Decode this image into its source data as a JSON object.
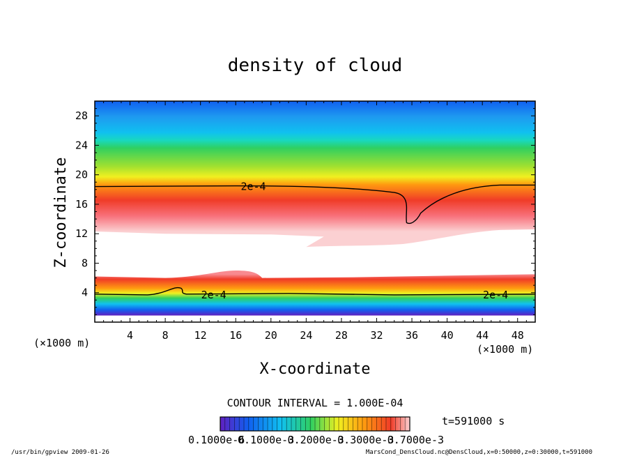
{
  "chart_data": {
    "type": "heatmap",
    "title": "density of cloud",
    "xlabel": "X-coordinate",
    "ylabel": "Z-coordinate",
    "x_unit_label": "(×1000 m)",
    "y_unit_label": "(×1000 m)",
    "xlim": [
      0,
      50
    ],
    "ylim": [
      0,
      30
    ],
    "x_ticks": [
      4,
      8,
      12,
      16,
      20,
      24,
      28,
      32,
      36,
      40,
      44,
      48
    ],
    "y_ticks": [
      4,
      8,
      12,
      16,
      20,
      24,
      28
    ],
    "grid": false,
    "contour_level_label": "2e-4",
    "contour_labels": [
      {
        "text": "2e-4",
        "x": 18,
        "z": 18.5
      },
      {
        "text": "2e-4",
        "x": 13.5,
        "z": 3.8
      },
      {
        "text": "2e-4",
        "x": 45.5,
        "z": 3.8
      }
    ],
    "contour_interval_text": "CONTOUR INTERVAL = 1.000E-04",
    "time_text": "t=591000 s",
    "colorbar": {
      "min_label": "0.1000e-6",
      "tick_labels": [
        "0.1000e-6",
        "0.1000e-3",
        "0.2000e-3",
        "0.3000e-3",
        "0.7000e-3"
      ],
      "range": [
        1e-07,
        0.0007
      ]
    },
    "upper_layer": {
      "top_z": 30,
      "bottom_z": 12.3,
      "contour_z": 18.5,
      "notch_bottom_z": 13.5,
      "notch_x": 36,
      "tongue_tip": {
        "x": 24,
        "z": 10.2
      }
    },
    "lower_layer": {
      "top_z": 6.5,
      "bottom_z": 0.9,
      "contour_z": 3.8,
      "bulge": {
        "x": 16,
        "z": 7.0
      }
    }
  },
  "footer": {
    "left": "/usr/bin/gpview  2009-01-26",
    "right": "MarsCond_DensCloud.nc@DensCloud,x=0:50000,z=0:30000,t=591000"
  },
  "colors": {
    "white": "#ffffff",
    "pink": "#fbd0d2",
    "red": "#f03c28",
    "orange": "#ff9a10",
    "yellow": "#f0f020",
    "green": "#30d060",
    "cyan": "#10c0f0",
    "blue": "#1060f0",
    "purple": "#6020c0"
  }
}
